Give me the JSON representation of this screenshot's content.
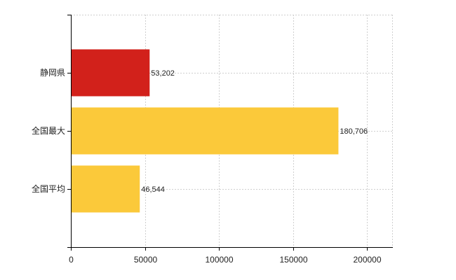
{
  "chart_data": {
    "type": "bar",
    "orientation": "horizontal",
    "categories": [
      "静岡県",
      "全国最大",
      "全国平均"
    ],
    "values": [
      53202,
      180706,
      46544
    ],
    "value_labels": [
      "53,202",
      "180,706",
      "46,544"
    ],
    "bar_colors": [
      "#d2211b",
      "#fbc93a",
      "#fbc93a"
    ],
    "xlim": [
      0,
      217000
    ],
    "x_ticks": [
      0,
      50000,
      100000,
      150000,
      200000
    ],
    "x_tick_labels": [
      "0",
      "50000",
      "100000",
      "150000",
      "200000"
    ],
    "grid": true,
    "legend": "none"
  }
}
